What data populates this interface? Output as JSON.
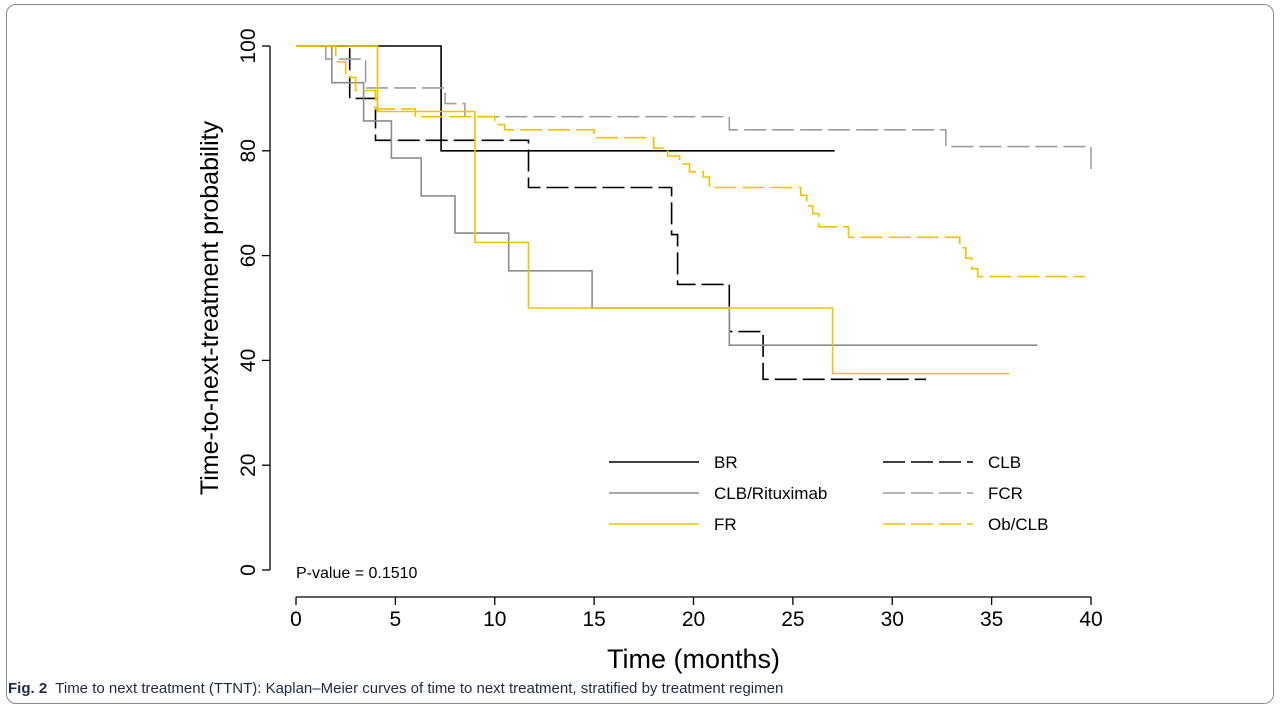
{
  "chart_data": {
    "type": "line",
    "subtype": "kaplan-meier",
    "title": "",
    "xlabel": "Time (months)",
    "ylabel": "Time-to-next-treatment probability",
    "xlim": [
      0,
      40
    ],
    "ylim": [
      0,
      100
    ],
    "xticks": [
      0,
      5,
      10,
      15,
      20,
      25,
      30,
      35,
      40
    ],
    "yticks": [
      0,
      20,
      40,
      60,
      80,
      100
    ],
    "grid": false,
    "legend_position": "bottom-right",
    "annotation": "P-value = 0.1510",
    "series": [
      {
        "name": "BR",
        "color": "#000000",
        "dash": "solid",
        "points": [
          [
            0,
            100
          ],
          [
            7.3,
            100
          ],
          [
            7.3,
            80
          ],
          [
            27.1,
            80
          ]
        ]
      },
      {
        "name": "CLB",
        "color": "#000000",
        "dash": "dashed",
        "points": [
          [
            0,
            100
          ],
          [
            2.7,
            100
          ],
          [
            2.7,
            90
          ],
          [
            4,
            90
          ],
          [
            4,
            82
          ],
          [
            11.7,
            82
          ],
          [
            11.7,
            73
          ],
          [
            18.9,
            73
          ],
          [
            18.9,
            64
          ],
          [
            19.2,
            64
          ],
          [
            19.2,
            54.5
          ],
          [
            21.8,
            54.5
          ],
          [
            21.8,
            45.5
          ],
          [
            23.5,
            45.5
          ],
          [
            23.5,
            36.4
          ],
          [
            31.7,
            36.4
          ]
        ]
      },
      {
        "name": "CLB/Rituximab",
        "color": "#8c8c8c",
        "dash": "solid",
        "points": [
          [
            0,
            100
          ],
          [
            1.8,
            100
          ],
          [
            1.8,
            93
          ],
          [
            3.4,
            93
          ],
          [
            3.4,
            85.7
          ],
          [
            4.8,
            85.7
          ],
          [
            4.8,
            78.6
          ],
          [
            6.3,
            78.6
          ],
          [
            6.3,
            71.4
          ],
          [
            8,
            71.4
          ],
          [
            8,
            64.3
          ],
          [
            10.7,
            64.3
          ],
          [
            10.7,
            57.1
          ],
          [
            14.9,
            57.1
          ],
          [
            14.9,
            50
          ],
          [
            21.8,
            50
          ],
          [
            21.8,
            42.9
          ],
          [
            37.3,
            42.9
          ]
        ]
      },
      {
        "name": "FCR",
        "color": "#9e9e9e",
        "dash": "dashed",
        "points": [
          [
            0,
            100
          ],
          [
            1.5,
            100
          ],
          [
            1.5,
            97.5
          ],
          [
            3.5,
            97.5
          ],
          [
            3.5,
            92
          ],
          [
            7.5,
            92
          ],
          [
            7.5,
            89
          ],
          [
            8.5,
            89
          ],
          [
            8.5,
            86.5
          ],
          [
            21.8,
            86.5
          ],
          [
            21.8,
            84
          ],
          [
            32.7,
            84
          ],
          [
            32.7,
            80.8
          ],
          [
            40,
            80.8
          ],
          [
            40,
            76
          ]
        ]
      },
      {
        "name": "FR",
        "color": "#f2c200",
        "dash": "solid",
        "points": [
          [
            0,
            100
          ],
          [
            4.1,
            100
          ],
          [
            4.1,
            87.5
          ],
          [
            9,
            87.5
          ],
          [
            9,
            62.5
          ],
          [
            11.7,
            62.5
          ],
          [
            11.7,
            50
          ],
          [
            27,
            50
          ],
          [
            27,
            37.5
          ],
          [
            35.9,
            37.5
          ]
        ]
      },
      {
        "name": "Ob/CLB",
        "color": "#f2c200",
        "dash": "dashed",
        "points": [
          [
            0,
            100
          ],
          [
            2,
            100
          ],
          [
            2,
            97
          ],
          [
            2.5,
            97
          ],
          [
            2.5,
            94
          ],
          [
            3,
            94
          ],
          [
            3,
            91.5
          ],
          [
            4,
            91.5
          ],
          [
            4,
            88
          ],
          [
            6,
            88
          ],
          [
            6,
            86.5
          ],
          [
            10,
            86.5
          ],
          [
            10,
            85
          ],
          [
            10.5,
            85
          ],
          [
            10.5,
            84
          ],
          [
            15,
            84
          ],
          [
            15,
            82.5
          ],
          [
            18,
            82.5
          ],
          [
            18,
            80.5
          ],
          [
            18.7,
            80.5
          ],
          [
            18.7,
            79
          ],
          [
            19.3,
            79
          ],
          [
            19.3,
            77.5
          ],
          [
            19.8,
            77.5
          ],
          [
            19.8,
            76
          ],
          [
            20.5,
            76
          ],
          [
            20.5,
            75
          ],
          [
            20.8,
            75
          ],
          [
            20.8,
            73
          ],
          [
            25.4,
            73
          ],
          [
            25.4,
            71.5
          ],
          [
            25.7,
            71.5
          ],
          [
            25.7,
            69.5
          ],
          [
            26,
            69.5
          ],
          [
            26,
            68
          ],
          [
            26.3,
            68
          ],
          [
            26.3,
            65.5
          ],
          [
            27.8,
            65.5
          ],
          [
            27.8,
            63.5
          ],
          [
            33.4,
            63.5
          ],
          [
            33.4,
            61.5
          ],
          [
            33.7,
            61.5
          ],
          [
            33.7,
            59.5
          ],
          [
            34,
            59.5
          ],
          [
            34,
            57.5
          ],
          [
            34.3,
            57.5
          ],
          [
            34.3,
            56
          ],
          [
            39.7,
            56
          ]
        ]
      }
    ]
  },
  "caption": {
    "label": "Fig. 2",
    "text": "Time to next treatment (TTNT): Kaplan–Meier curves of time to next treatment, stratified by treatment regimen"
  }
}
